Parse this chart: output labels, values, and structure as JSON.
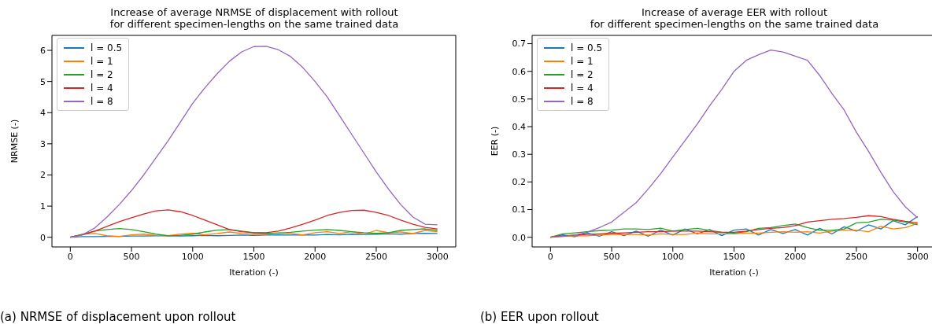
{
  "chart_data": [
    {
      "type": "line",
      "title": "Increase of average NRMSE of displacement with rollout\nfor different specimen-lengths on the same trained data",
      "xlabel": "Iteration (-)",
      "ylabel": "NRMSE (-)",
      "legend": "top left",
      "xlim": [
        -150,
        3150
      ],
      "ylim": [
        -0.31,
        6.48
      ],
      "xticks": [
        0,
        500,
        1000,
        1500,
        2000,
        2500,
        3000
      ],
      "yticks": [
        0,
        1,
        2,
        3,
        4,
        5,
        6
      ],
      "x": [
        0,
        100,
        200,
        300,
        400,
        500,
        600,
        700,
        800,
        900,
        1000,
        1100,
        1200,
        1300,
        1400,
        1500,
        1600,
        1700,
        1800,
        1900,
        2000,
        2100,
        2200,
        2300,
        2400,
        2500,
        2600,
        2700,
        2800,
        2900,
        3000
      ],
      "series": [
        {
          "name": "l = 0.5",
          "color": "#1f77b4",
          "values": [
            0,
            0.02,
            0.02,
            0.03,
            0.03,
            0.04,
            0.04,
            0.05,
            0.05,
            0.04,
            0.05,
            0.06,
            0.05,
            0.06,
            0.07,
            0.06,
            0.07,
            0.08,
            0.07,
            0.08,
            0.07,
            0.09,
            0.08,
            0.1,
            0.09,
            0.1,
            0.11,
            0.1,
            0.12,
            0.13,
            0.12
          ]
        },
        {
          "name": "l = 1",
          "color": "#ff7f0e",
          "values": [
            0,
            0.1,
            0.12,
            0.05,
            0.03,
            0.08,
            0.1,
            0.06,
            0.05,
            0.1,
            0.13,
            0.08,
            0.12,
            0.17,
            0.12,
            0.1,
            0.1,
            0.15,
            0.12,
            0.08,
            0.15,
            0.18,
            0.12,
            0.18,
            0.1,
            0.22,
            0.15,
            0.17,
            0.12,
            0.22,
            0.18
          ]
        },
        {
          "name": "l = 2",
          "color": "#2ca02c",
          "values": [
            0,
            0.1,
            0.2,
            0.25,
            0.28,
            0.25,
            0.18,
            0.1,
            0.05,
            0.06,
            0.1,
            0.17,
            0.23,
            0.25,
            0.2,
            0.15,
            0.13,
            0.13,
            0.16,
            0.2,
            0.23,
            0.25,
            0.22,
            0.18,
            0.15,
            0.13,
            0.15,
            0.22,
            0.25,
            0.27,
            0.22
          ]
        },
        {
          "name": "l = 4",
          "color": "#d62728",
          "values": [
            0,
            0.08,
            0.2,
            0.35,
            0.5,
            0.63,
            0.75,
            0.85,
            0.88,
            0.82,
            0.7,
            0.55,
            0.4,
            0.25,
            0.18,
            0.15,
            0.15,
            0.2,
            0.3,
            0.42,
            0.55,
            0.7,
            0.8,
            0.86,
            0.87,
            0.8,
            0.7,
            0.55,
            0.42,
            0.32,
            0.27
          ]
        },
        {
          "name": "l = 8",
          "color": "#9467bd",
          "values": [
            0,
            0.08,
            0.3,
            0.65,
            1.05,
            1.5,
            2.0,
            2.55,
            3.1,
            3.7,
            4.3,
            4.8,
            5.25,
            5.65,
            5.95,
            6.12,
            6.13,
            6.02,
            5.8,
            5.45,
            5.0,
            4.5,
            3.9,
            3.3,
            2.7,
            2.1,
            1.55,
            1.05,
            0.65,
            0.42,
            0.4
          ]
        }
      ],
      "annotations": [
        "(a) NRMSE of displacement upon rollout"
      ]
    },
    {
      "type": "line",
      "title": "Increase of average EER with rollout\nfor different specimen-lengths on the same trained data",
      "xlabel": "Iteration (-)",
      "ylabel": "EER (-)",
      "legend": "top left",
      "xlim": [
        -150,
        3150
      ],
      "ylim": [
        -0.035,
        0.73
      ],
      "xticks": [
        0,
        500,
        1000,
        1500,
        2000,
        2500,
        3000
      ],
      "yticks": [
        {
          "value": 0,
          "label": "0.0"
        },
        0.1,
        0.2,
        0.3,
        0.4,
        0.5,
        0.6,
        0.7
      ],
      "x": [
        0,
        100,
        200,
        300,
        400,
        500,
        600,
        700,
        800,
        900,
        1000,
        1100,
        1200,
        1300,
        1400,
        1500,
        1600,
        1700,
        1800,
        1900,
        2000,
        2100,
        2200,
        2300,
        2400,
        2500,
        2600,
        2700,
        2800,
        2900,
        3000
      ],
      "series": [
        {
          "name": "l = 0.5",
          "color": "#1f77b4",
          "values": [
            0,
            0.009,
            0.002,
            0.016,
            0.004,
            0.02,
            0.006,
            0.022,
            0.004,
            0.026,
            0.008,
            0.03,
            0.012,
            0.028,
            0.006,
            0.026,
            0.03,
            0.008,
            0.028,
            0.014,
            0.028,
            0.008,
            0.032,
            0.012,
            0.038,
            0.022,
            0.045,
            0.03,
            0.06,
            0.045,
            0.075
          ]
        },
        {
          "name": "l = 1",
          "color": "#ff7f0e",
          "values": [
            0,
            0.003,
            0.005,
            0.005,
            0.008,
            0.01,
            0.01,
            0.01,
            0.008,
            0.012,
            0.01,
            0.01,
            0.015,
            0.012,
            0.012,
            0.012,
            0.015,
            0.015,
            0.018,
            0.02,
            0.018,
            0.02,
            0.015,
            0.022,
            0.025,
            0.025,
            0.02,
            0.04,
            0.03,
            0.035,
            0.05
          ]
        },
        {
          "name": "l = 2",
          "color": "#2ca02c",
          "values": [
            0,
            0.012,
            0.016,
            0.02,
            0.024,
            0.026,
            0.03,
            0.03,
            0.028,
            0.033,
            0.022,
            0.028,
            0.032,
            0.025,
            0.018,
            0.015,
            0.02,
            0.032,
            0.035,
            0.042,
            0.048,
            0.035,
            0.025,
            0.025,
            0.03,
            0.052,
            0.055,
            0.065,
            0.062,
            0.055,
            0.045
          ]
        },
        {
          "name": "l = 4",
          "color": "#d62728",
          "values": [
            0,
            0.005,
            0.008,
            0.01,
            0.012,
            0.014,
            0.016,
            0.018,
            0.02,
            0.02,
            0.022,
            0.022,
            0.022,
            0.02,
            0.018,
            0.018,
            0.022,
            0.028,
            0.032,
            0.035,
            0.042,
            0.055,
            0.06,
            0.065,
            0.068,
            0.072,
            0.078,
            0.075,
            0.065,
            0.058,
            0.052
          ]
        },
        {
          "name": "l = 8",
          "color": "#9467bd",
          "values": [
            0,
            0.003,
            0.008,
            0.018,
            0.035,
            0.055,
            0.09,
            0.125,
            0.175,
            0.23,
            0.29,
            0.35,
            0.41,
            0.475,
            0.535,
            0.6,
            0.64,
            0.66,
            0.677,
            0.67,
            0.655,
            0.64,
            0.585,
            0.52,
            0.46,
            0.38,
            0.31,
            0.235,
            0.165,
            0.11,
            0.07
          ]
        }
      ],
      "annotations": [
        "(b) EER upon rollout"
      ]
    }
  ]
}
